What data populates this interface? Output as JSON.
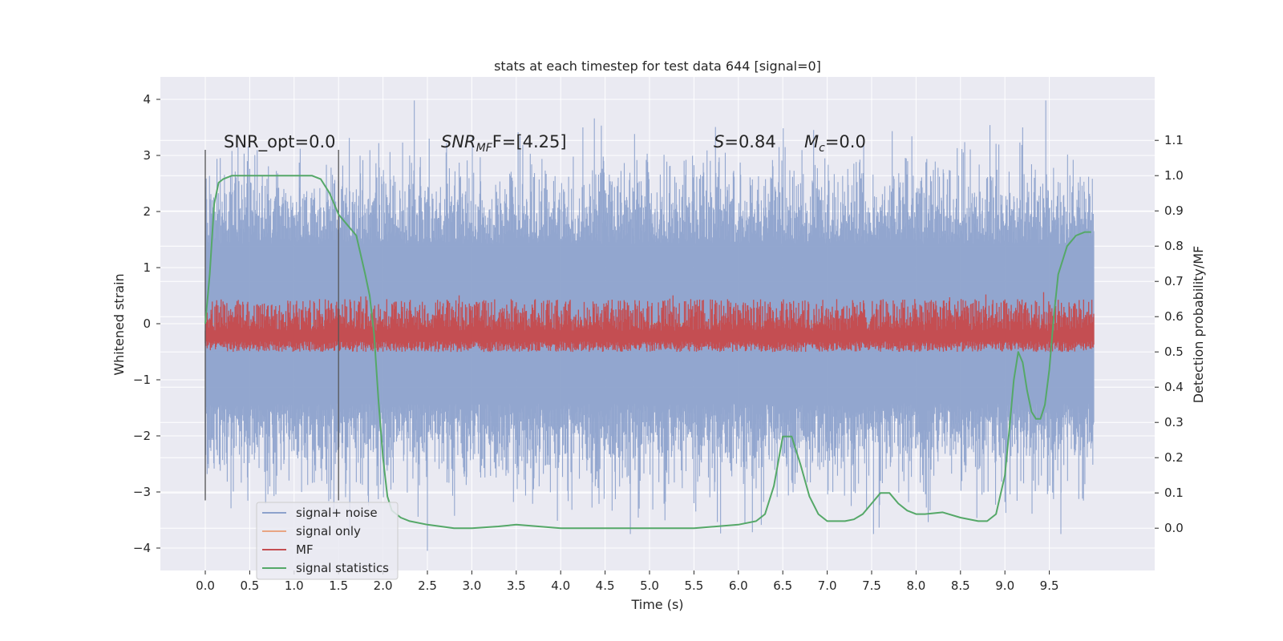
{
  "chart_data": {
    "type": "line",
    "title": "stats at each timestep for test data 644 [signal=0]",
    "xlabel": "Time (s)",
    "ylabel": "Whitened strain",
    "y2label": "Detection probability/MF",
    "xlim": [
      -0.5,
      10.5
    ],
    "ylim": [
      -4.4,
      4.4
    ],
    "y2lim": [
      -0.12,
      1.28
    ],
    "grid": true,
    "x_ticks": [
      "0.0",
      "0.5",
      "1.0",
      "1.5",
      "2.0",
      "2.5",
      "3.0",
      "3.5",
      "4.0",
      "4.5",
      "5.0",
      "5.5",
      "6.0",
      "6.5",
      "7.0",
      "7.5",
      "8.0",
      "8.5",
      "9.0",
      "9.5"
    ],
    "y_ticks": [
      "−4",
      "−3",
      "−2",
      "−1",
      "0",
      "1",
      "2",
      "3",
      "4"
    ],
    "y2_ticks": [
      "0.0",
      "0.1",
      "0.2",
      "0.3",
      "0.4",
      "0.5",
      "0.6",
      "0.7",
      "0.8",
      "0.9",
      "1.0",
      "1.1"
    ],
    "annotations": {
      "snr_opt": "SNR_opt=0.0",
      "snr_mf_main": "SNR",
      "snr_mf_sub": "MF",
      "snr_mf_value": "F=[4.25]",
      "s_main": "S",
      "s_value": "=0.84",
      "mc_main": "M",
      "mc_sub": "c",
      "mc_value": "=0.0"
    },
    "window_markers": [
      0.0,
      1.5
    ],
    "legend": {
      "placement": "lower-left",
      "entries": [
        "signal+ noise",
        "signal only",
        "MF",
        "signal statistics"
      ]
    },
    "colors": {
      "noise": "#8da2cc",
      "signal_only": "#e8a583",
      "mf": "#c44e52",
      "stat": "#55a868",
      "background": "#eaeaf2",
      "marker": "#555555"
    },
    "series": [
      {
        "name": "signal+ noise",
        "axis": "left",
        "x_range": [
          0.0,
          10.0
        ],
        "envelope": [
          -1.9,
          1.9
        ],
        "peak_max": 3.98,
        "peak_min": -3.75
      },
      {
        "name": "signal only",
        "axis": "left",
        "x_range": [
          0.0,
          10.0
        ],
        "value": 0.0
      },
      {
        "name": "MF",
        "axis": "right",
        "x_range": [
          0.0,
          10.0
        ],
        "band": [
          0.5,
          0.63
        ],
        "peak_max": 0.67
      },
      {
        "name": "signal statistics",
        "axis": "right",
        "x": [
          0.0,
          0.05,
          0.1,
          0.15,
          0.2,
          0.3,
          0.5,
          0.8,
          1.0,
          1.2,
          1.3,
          1.4,
          1.5,
          1.6,
          1.7,
          1.8,
          1.85,
          1.9,
          1.95,
          2.0,
          2.05,
          2.1,
          2.2,
          2.3,
          2.5,
          2.8,
          3.0,
          3.3,
          3.5,
          4.0,
          4.5,
          5.0,
          5.5,
          6.0,
          6.2,
          6.3,
          6.4,
          6.5,
          6.6,
          6.7,
          6.8,
          6.9,
          7.0,
          7.2,
          7.3,
          7.4,
          7.5,
          7.6,
          7.7,
          7.8,
          7.9,
          8.0,
          8.1,
          8.3,
          8.5,
          8.7,
          8.8,
          8.9,
          9.0,
          9.05,
          9.1,
          9.15,
          9.2,
          9.25,
          9.3,
          9.35,
          9.4,
          9.45,
          9.5,
          9.55,
          9.6,
          9.7,
          9.8,
          9.9,
          9.97
        ],
        "values": [
          0.58,
          0.72,
          0.92,
          0.98,
          0.99,
          1.0,
          1.0,
          1.0,
          1.0,
          1.0,
          0.99,
          0.95,
          0.89,
          0.86,
          0.83,
          0.72,
          0.66,
          0.55,
          0.36,
          0.2,
          0.09,
          0.05,
          0.03,
          0.02,
          0.01,
          0.0,
          0.0,
          0.005,
          0.01,
          0.0,
          0.0,
          0.0,
          0.0,
          0.01,
          0.02,
          0.04,
          0.12,
          0.26,
          0.26,
          0.18,
          0.09,
          0.04,
          0.02,
          0.02,
          0.025,
          0.04,
          0.07,
          0.1,
          0.1,
          0.07,
          0.05,
          0.04,
          0.04,
          0.045,
          0.03,
          0.02,
          0.02,
          0.04,
          0.15,
          0.28,
          0.42,
          0.5,
          0.47,
          0.39,
          0.33,
          0.31,
          0.31,
          0.35,
          0.45,
          0.6,
          0.72,
          0.8,
          0.83,
          0.84,
          0.84
        ]
      }
    ]
  }
}
